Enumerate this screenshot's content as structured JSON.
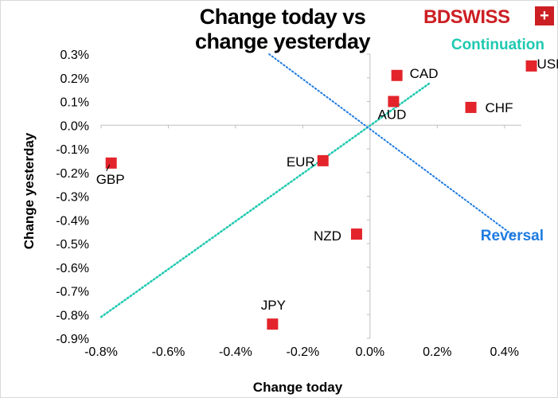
{
  "logo": {
    "text_a": "BD",
    "text_b": "SWISS",
    "mark": "+"
  },
  "chart_data": {
    "type": "scatter",
    "title": "Change today vs change yesterday",
    "title_lines": [
      "Change today vs",
      "change yesterday"
    ],
    "xlabel": "Change today",
    "ylabel": "Change yesterday",
    "xlim": [
      -0.8,
      0.5
    ],
    "ylim": [
      -0.9,
      0.3
    ],
    "xticks": [
      -0.8,
      -0.6,
      -0.4,
      -0.2,
      0.0,
      0.2,
      0.4
    ],
    "yticks": [
      0.3,
      0.2,
      0.1,
      0.0,
      -0.1,
      -0.2,
      -0.3,
      -0.4,
      -0.5,
      -0.6,
      -0.7,
      -0.8,
      -0.9
    ],
    "xtick_labels": [
      "-0.8%",
      "-0.6%",
      "-0.4%",
      "-0.2%",
      "0.0%",
      "0.2%",
      "0.4%"
    ],
    "ytick_labels": [
      "0.3%",
      "0.2%",
      "0.1%",
      "0.0%",
      "-0.1%",
      "-0.2%",
      "-0.3%",
      "-0.4%",
      "-0.5%",
      "-0.6%",
      "-0.7%",
      "-0.8%",
      "-0.9%"
    ],
    "marker_color": "#e3242b",
    "points": [
      {
        "label": "USD",
        "x": 0.48,
        "y": 0.25
      },
      {
        "label": "CAD",
        "x": 0.08,
        "y": 0.21
      },
      {
        "label": "CHF",
        "x": 0.3,
        "y": 0.075
      },
      {
        "label": "AUD",
        "x": 0.07,
        "y": 0.1
      },
      {
        "label": "EUR",
        "x": -0.14,
        "y": -0.15
      },
      {
        "label": "GBP",
        "x": -0.77,
        "y": -0.16
      },
      {
        "label": "NZD",
        "x": -0.04,
        "y": -0.46
      },
      {
        "label": "JPY",
        "x": -0.29,
        "y": -0.84
      }
    ],
    "continuation_line": {
      "label": "Continuation",
      "color": "#1fc9b0",
      "x": [
        -0.8,
        0.18
      ],
      "y": [
        -0.81,
        0.18
      ]
    },
    "reversal_line": {
      "label": "Reversal",
      "color": "#1f7be0",
      "x": [
        -0.3,
        0.43
      ],
      "y": [
        0.3,
        -0.47
      ]
    }
  }
}
